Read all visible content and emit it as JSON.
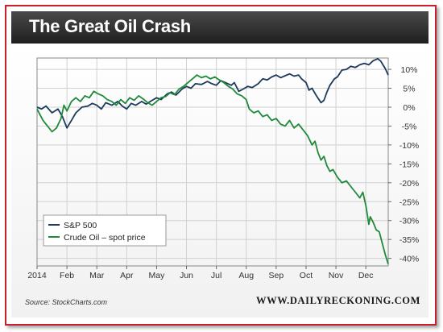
{
  "title": "The Great Oil Crash",
  "source": "Source: StockCharts.com",
  "site": "WWW.DAILYRECKONING.COM",
  "chart_data": {
    "type": "line",
    "title": "The Great Oil Crash",
    "xlabel": "",
    "ylabel": "",
    "x_ticks": [
      "2014",
      "Feb",
      "Mar",
      "Apr",
      "May",
      "Jun",
      "Jul",
      "Aug",
      "Sep",
      "Oct",
      "Nov",
      "Dec"
    ],
    "y_ticks": [
      "10%",
      "5%",
      "0%",
      "-5%",
      "-10%",
      "-15%",
      "-20%",
      "-25%",
      "-30%",
      "-35%",
      "-40%"
    ],
    "ylim": [
      -42,
      13
    ],
    "xlim": [
      0,
      11.75
    ],
    "grid": true,
    "legend_position": "bottom-left",
    "series": [
      {
        "name": "S&P 500",
        "color": "#1b3a5c",
        "points": [
          [
            0,
            0
          ],
          [
            0.15,
            -0.5
          ],
          [
            0.3,
            0.3
          ],
          [
            0.5,
            -1.5
          ],
          [
            0.7,
            -0.5
          ],
          [
            0.85,
            -2.5
          ],
          [
            1.0,
            -5.5
          ],
          [
            1.15,
            -3.5
          ],
          [
            1.3,
            -1.5
          ],
          [
            1.5,
            0
          ],
          [
            1.7,
            0.3
          ],
          [
            1.85,
            1
          ],
          [
            2.0,
            0.5
          ],
          [
            2.15,
            -0.5
          ],
          [
            2.3,
            1.2
          ],
          [
            2.5,
            0.5
          ],
          [
            2.7,
            1.5
          ],
          [
            2.85,
            0.3
          ],
          [
            3.0,
            -0.5
          ],
          [
            3.15,
            1
          ],
          [
            3.3,
            0.5
          ],
          [
            3.5,
            1.5
          ],
          [
            3.65,
            0.8
          ],
          [
            3.85,
            1.8
          ],
          [
            4.0,
            2.5
          ],
          [
            4.15,
            2
          ],
          [
            4.35,
            3.5
          ],
          [
            4.5,
            4
          ],
          [
            4.65,
            3.2
          ],
          [
            4.85,
            4.8
          ],
          [
            5.0,
            5.5
          ],
          [
            5.15,
            5
          ],
          [
            5.3,
            6.2
          ],
          [
            5.5,
            6
          ],
          [
            5.7,
            6.8
          ],
          [
            5.85,
            6.2
          ],
          [
            6.0,
            5.8
          ],
          [
            6.15,
            7
          ],
          [
            6.3,
            6.5
          ],
          [
            6.5,
            5.8
          ],
          [
            6.6,
            6.5
          ],
          [
            6.75,
            4.2
          ],
          [
            6.9,
            4.8
          ],
          [
            7.05,
            5.5
          ],
          [
            7.2,
            5.2
          ],
          [
            7.4,
            6.2
          ],
          [
            7.55,
            7.5
          ],
          [
            7.7,
            7.2
          ],
          [
            7.85,
            8
          ],
          [
            8.0,
            8.5
          ],
          [
            8.15,
            7.8
          ],
          [
            8.3,
            8.3
          ],
          [
            8.45,
            8.8
          ],
          [
            8.6,
            8.2
          ],
          [
            8.75,
            8.5
          ],
          [
            8.85,
            7.5
          ],
          [
            9.0,
            6.5
          ],
          [
            9.1,
            4.5
          ],
          [
            9.2,
            5
          ],
          [
            9.35,
            3
          ],
          [
            9.5,
            1.2
          ],
          [
            9.6,
            1.8
          ],
          [
            9.7,
            4
          ],
          [
            9.8,
            5.8
          ],
          [
            9.95,
            7.5
          ],
          [
            10.05,
            8
          ],
          [
            10.2,
            9.8
          ],
          [
            10.35,
            10
          ],
          [
            10.5,
            10.8
          ],
          [
            10.65,
            10.5
          ],
          [
            10.8,
            11.2
          ],
          [
            10.95,
            11.6
          ],
          [
            11.1,
            11.2
          ],
          [
            11.25,
            12.3
          ],
          [
            11.4,
            12.8
          ],
          [
            11.5,
            12.2
          ],
          [
            11.55,
            11.5
          ],
          [
            11.65,
            10.2
          ],
          [
            11.75,
            8.5
          ]
        ]
      },
      {
        "name": "Crude Oil – spot price",
        "color": "#1f8a3a",
        "points": [
          [
            0,
            -0.5
          ],
          [
            0.1,
            -2
          ],
          [
            0.2,
            -3.5
          ],
          [
            0.35,
            -5
          ],
          [
            0.5,
            -6.5
          ],
          [
            0.65,
            -5.5
          ],
          [
            0.8,
            -3
          ],
          [
            0.9,
            0.5
          ],
          [
            1.0,
            -1
          ],
          [
            1.15,
            1.5
          ],
          [
            1.3,
            2.5
          ],
          [
            1.45,
            1.5
          ],
          [
            1.6,
            3
          ],
          [
            1.75,
            2.5
          ],
          [
            1.9,
            4.2
          ],
          [
            2.05,
            3.5
          ],
          [
            2.2,
            3
          ],
          [
            2.35,
            2
          ],
          [
            2.5,
            1.5
          ],
          [
            2.65,
            0.5
          ],
          [
            2.8,
            2
          ],
          [
            2.95,
            1
          ],
          [
            3.1,
            2.5
          ],
          [
            3.25,
            1.8
          ],
          [
            3.4,
            3
          ],
          [
            3.55,
            2.2
          ],
          [
            3.7,
            1.2
          ],
          [
            3.85,
            0.5
          ],
          [
            4.0,
            1.5
          ],
          [
            4.15,
            2.5
          ],
          [
            4.3,
            2.8
          ],
          [
            4.45,
            3.8
          ],
          [
            4.6,
            3.3
          ],
          [
            4.75,
            4.8
          ],
          [
            4.9,
            5.5
          ],
          [
            5.05,
            6.5
          ],
          [
            5.2,
            7.5
          ],
          [
            5.35,
            8.5
          ],
          [
            5.5,
            7.8
          ],
          [
            5.65,
            8.2
          ],
          [
            5.8,
            7.5
          ],
          [
            5.95,
            8
          ],
          [
            6.1,
            7.2
          ],
          [
            6.25,
            6.5
          ],
          [
            6.4,
            5.5
          ],
          [
            6.55,
            4.8
          ],
          [
            6.7,
            3.5
          ],
          [
            6.85,
            3
          ],
          [
            7.0,
            2
          ],
          [
            7.1,
            -0.5
          ],
          [
            7.25,
            -1.5
          ],
          [
            7.4,
            -1
          ],
          [
            7.55,
            -2.5
          ],
          [
            7.7,
            -2
          ],
          [
            7.85,
            -3.5
          ],
          [
            8.0,
            -3
          ],
          [
            8.15,
            -4.5
          ],
          [
            8.3,
            -5
          ],
          [
            8.45,
            -3.5
          ],
          [
            8.6,
            -5.5
          ],
          [
            8.75,
            -4.5
          ],
          [
            8.9,
            -6
          ],
          [
            9.05,
            -7.5
          ],
          [
            9.2,
            -10
          ],
          [
            9.3,
            -9
          ],
          [
            9.4,
            -12
          ],
          [
            9.5,
            -14
          ],
          [
            9.6,
            -13
          ],
          [
            9.7,
            -15.5
          ],
          [
            9.8,
            -17
          ],
          [
            9.9,
            -16.5
          ],
          [
            10.05,
            -18.5
          ],
          [
            10.2,
            -20
          ],
          [
            10.35,
            -19.5
          ],
          [
            10.5,
            -21
          ],
          [
            10.65,
            -22.5
          ],
          [
            10.8,
            -24
          ],
          [
            10.9,
            -22.5
          ],
          [
            11.0,
            -26
          ],
          [
            11.1,
            -31
          ],
          [
            11.15,
            -29
          ],
          [
            11.25,
            -30.5
          ],
          [
            11.35,
            -32.5
          ],
          [
            11.45,
            -33
          ],
          [
            11.55,
            -36
          ],
          [
            11.65,
            -39
          ],
          [
            11.75,
            -41.5
          ]
        ]
      }
    ]
  }
}
